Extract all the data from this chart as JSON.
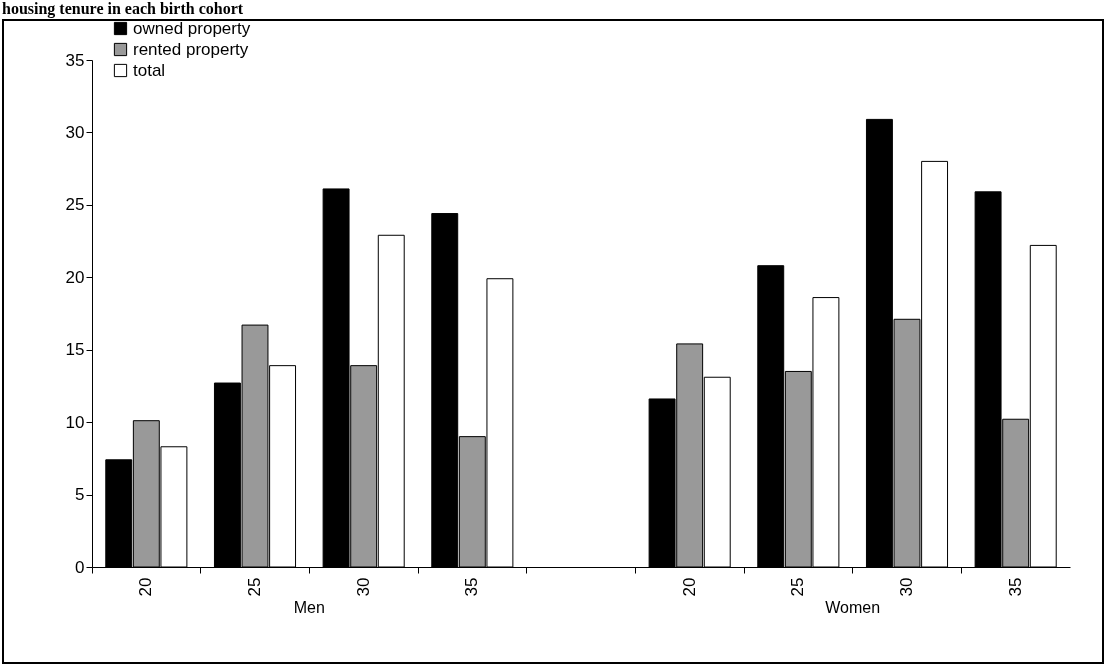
{
  "chart_data": {
    "type": "bar",
    "title": "housing tenure in each birth cohort",
    "categories": [
      "20",
      "25",
      "30",
      "35",
      null,
      "20",
      "25",
      "30",
      "35"
    ],
    "series": [
      {
        "name": "owned property",
        "color": "#000000",
        "values": [
          7.4,
          12.7,
          26.1,
          24.4,
          null,
          11.6,
          20.8,
          30.9,
          25.9
        ]
      },
      {
        "name": "rented property",
        "color": "#999999",
        "values": [
          10.1,
          16.7,
          13.9,
          9.0,
          null,
          15.4,
          13.5,
          17.1,
          10.2
        ]
      },
      {
        "name": "total",
        "color": "#ffffff",
        "values": [
          8.3,
          13.9,
          22.9,
          19.9,
          null,
          13.1,
          18.6,
          28.0,
          22.2
        ]
      }
    ],
    "ylim": [
      0,
      35
    ],
    "yticks": [
      0,
      5,
      10,
      15,
      20,
      25,
      30,
      35
    ],
    "grid": false,
    "legend": "top left",
    "annotations": [
      "Men",
      "Women"
    ]
  }
}
